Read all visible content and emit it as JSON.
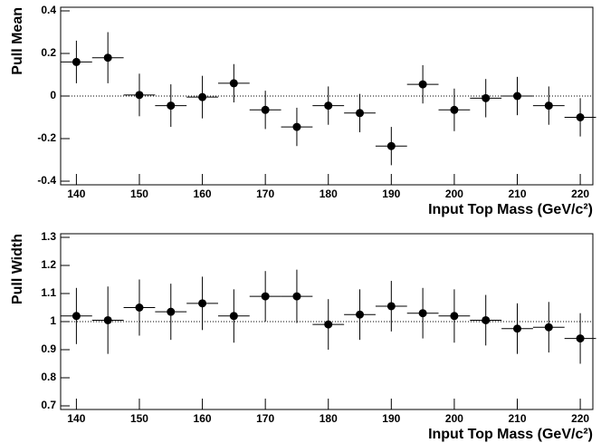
{
  "chart_data": [
    {
      "type": "scatter",
      "xlabel": "Input Top Mass (GeV/c²)",
      "ylabel": "Pull Mean",
      "x": [
        140,
        145,
        150,
        155,
        160,
        165,
        170,
        175,
        180,
        185,
        190,
        195,
        200,
        205,
        210,
        215,
        220
      ],
      "x_errors": [
        2.5,
        2.5,
        2.5,
        2.5,
        2.5,
        2.5,
        2.5,
        2.5,
        2.5,
        2.5,
        2.5,
        2.5,
        2.5,
        2.5,
        2.5,
        2.5,
        2.5
      ],
      "values": [
        0.16,
        0.18,
        0.005,
        -0.045,
        -0.005,
        0.06,
        -0.065,
        -0.145,
        -0.045,
        -0.08,
        -0.235,
        0.055,
        -0.065,
        -0.01,
        0.0,
        -0.045,
        -0.1
      ],
      "y_errors": [
        0.1,
        0.12,
        0.1,
        0.1,
        0.1,
        0.09,
        0.09,
        0.09,
        0.09,
        0.09,
        0.09,
        0.09,
        0.1,
        0.09,
        0.09,
        0.09,
        0.09
      ],
      "color": "#000000",
      "reference_line": 0,
      "xlim": [
        137.5,
        222
      ],
      "xticks": [
        140,
        150,
        160,
        170,
        180,
        190,
        200,
        210,
        220
      ],
      "ylim": [
        -0.4,
        0.4
      ],
      "yticks": [
        -0.4,
        -0.2,
        0,
        0.2,
        0.4
      ]
    },
    {
      "type": "scatter",
      "xlabel": "Input Top Mass (GeV/c²)",
      "ylabel": "Pull Width",
      "x": [
        140,
        145,
        150,
        155,
        160,
        165,
        170,
        175,
        180,
        185,
        190,
        195,
        200,
        205,
        210,
        215,
        220
      ],
      "x_errors": [
        2.5,
        2.5,
        2.5,
        2.5,
        2.5,
        2.5,
        2.5,
        2.5,
        2.5,
        2.5,
        2.5,
        2.5,
        2.5,
        2.5,
        2.5,
        2.5,
        2.5
      ],
      "values": [
        1.02,
        1.005,
        1.05,
        1.035,
        1.065,
        1.02,
        1.09,
        1.09,
        0.99,
        1.025,
        1.055,
        1.03,
        1.02,
        1.005,
        0.975,
        0.98,
        0.94
      ],
      "y_errors": [
        0.1,
        0.12,
        0.1,
        0.1,
        0.095,
        0.095,
        0.09,
        0.095,
        0.09,
        0.09,
        0.09,
        0.09,
        0.095,
        0.09,
        0.09,
        0.09,
        0.09
      ],
      "color": "#000000",
      "reference_line": 1,
      "xlim": [
        137.5,
        222
      ],
      "xticks": [
        140,
        150,
        160,
        170,
        180,
        190,
        200,
        210,
        220
      ],
      "ylim": [
        0.7,
        1.3
      ],
      "yticks": [
        0.7,
        0.8,
        0.9,
        1,
        1.1,
        1.2,
        1.3
      ]
    }
  ]
}
